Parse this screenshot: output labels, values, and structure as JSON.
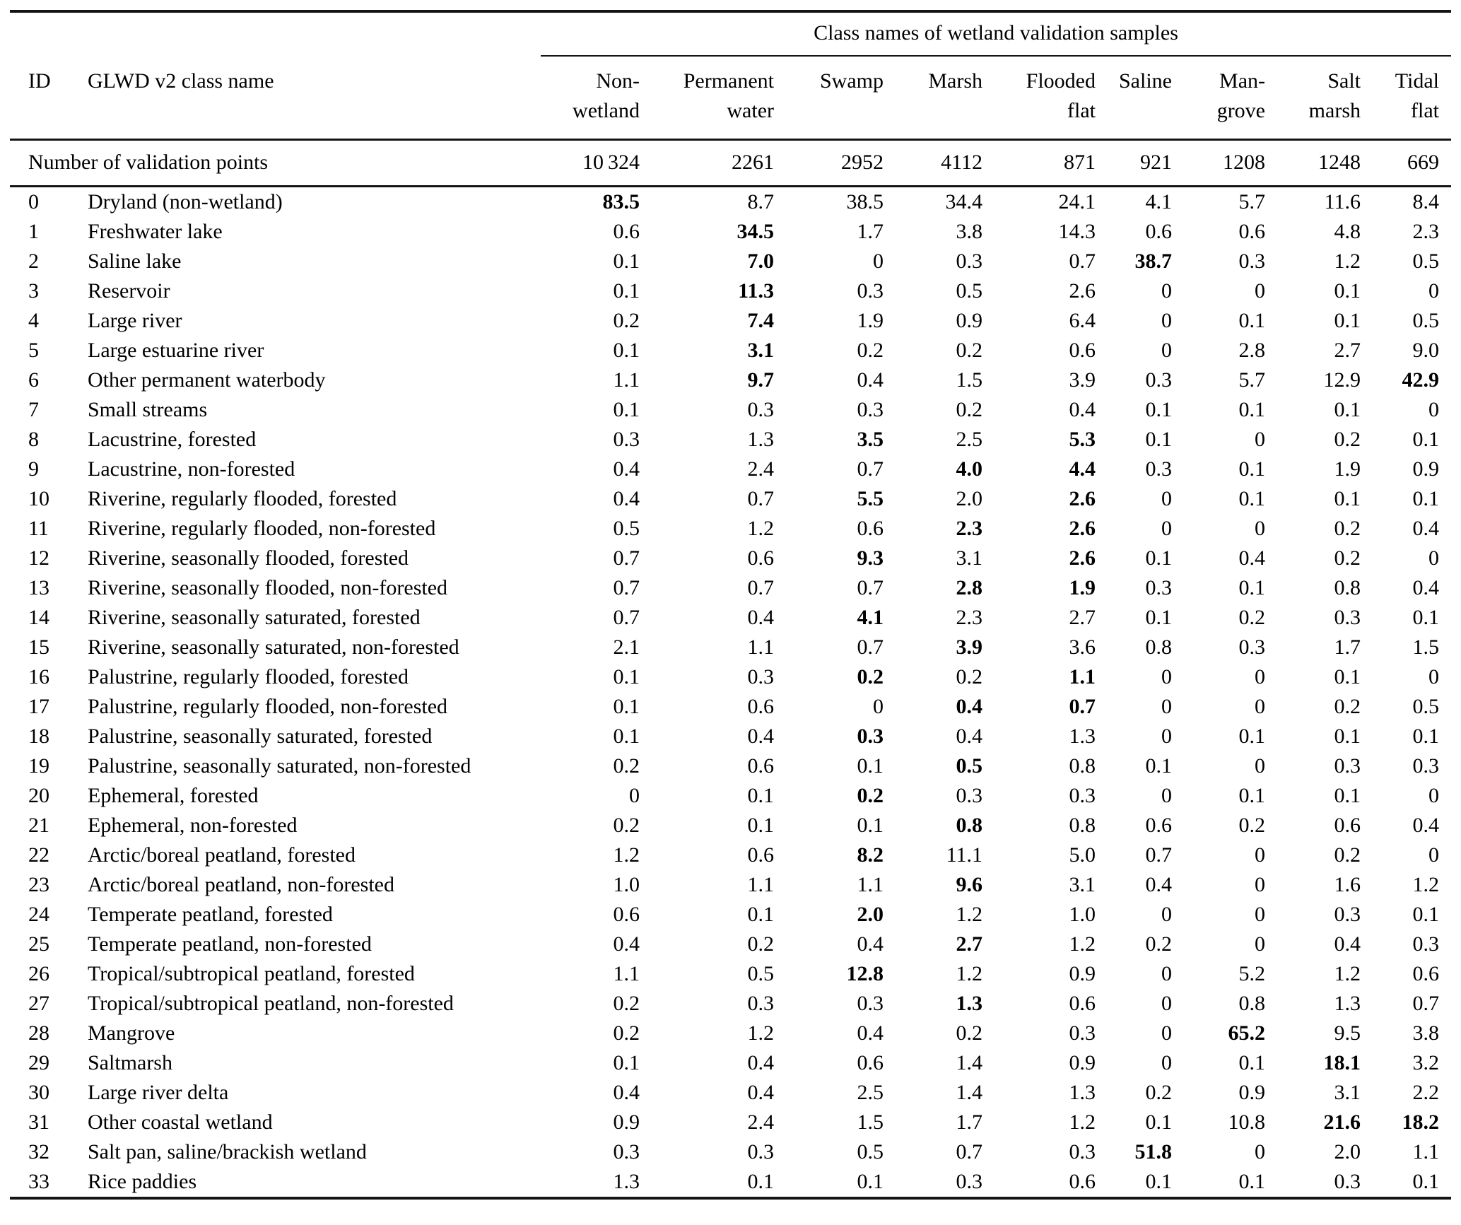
{
  "table": {
    "group_header": "Class names of wetland validation samples",
    "id_header": "ID",
    "name_header": "GLWD v2 class name",
    "columns": [
      {
        "line1": "Non-",
        "line2": "wetland"
      },
      {
        "line1": "Permanent",
        "line2": "water"
      },
      {
        "line1": "Swamp",
        "line2": ""
      },
      {
        "line1": "Marsh",
        "line2": ""
      },
      {
        "line1": "Flooded",
        "line2": "flat"
      },
      {
        "line1": "Saline",
        "line2": ""
      },
      {
        "line1": "Man-",
        "line2": "grove"
      },
      {
        "line1": "Salt",
        "line2": "marsh"
      },
      {
        "line1": "Tidal",
        "line2": "flat"
      }
    ],
    "validation_row": {
      "label": "Number of validation points",
      "values": [
        "10 324",
        "2261",
        "2952",
        "4112",
        "871",
        "921",
        "1208",
        "1248",
        "669"
      ]
    },
    "rows": [
      {
        "id": "0",
        "name": "Dryland (non-wetland)",
        "values": [
          "83.5",
          "8.7",
          "38.5",
          "34.4",
          "24.1",
          "4.1",
          "5.7",
          "11.6",
          "8.4"
        ],
        "bold": [
          0
        ]
      },
      {
        "id": "1",
        "name": "Freshwater lake",
        "values": [
          "0.6",
          "34.5",
          "1.7",
          "3.8",
          "14.3",
          "0.6",
          "0.6",
          "4.8",
          "2.3"
        ],
        "bold": [
          1
        ]
      },
      {
        "id": "2",
        "name": "Saline lake",
        "values": [
          "0.1",
          "7.0",
          "0",
          "0.3",
          "0.7",
          "38.7",
          "0.3",
          "1.2",
          "0.5"
        ],
        "bold": [
          1,
          5
        ]
      },
      {
        "id": "3",
        "name": "Reservoir",
        "values": [
          "0.1",
          "11.3",
          "0.3",
          "0.5",
          "2.6",
          "0",
          "0",
          "0.1",
          "0"
        ],
        "bold": [
          1
        ]
      },
      {
        "id": "4",
        "name": "Large river",
        "values": [
          "0.2",
          "7.4",
          "1.9",
          "0.9",
          "6.4",
          "0",
          "0.1",
          "0.1",
          "0.5"
        ],
        "bold": [
          1
        ]
      },
      {
        "id": "5",
        "name": "Large estuarine river",
        "values": [
          "0.1",
          "3.1",
          "0.2",
          "0.2",
          "0.6",
          "0",
          "2.8",
          "2.7",
          "9.0"
        ],
        "bold": [
          1
        ]
      },
      {
        "id": "6",
        "name": "Other permanent waterbody",
        "values": [
          "1.1",
          "9.7",
          "0.4",
          "1.5",
          "3.9",
          "0.3",
          "5.7",
          "12.9",
          "42.9"
        ],
        "bold": [
          1,
          8
        ]
      },
      {
        "id": "7",
        "name": "Small streams",
        "values": [
          "0.1",
          "0.3",
          "0.3",
          "0.2",
          "0.4",
          "0.1",
          "0.1",
          "0.1",
          "0"
        ],
        "bold": []
      },
      {
        "id": "8",
        "name": "Lacustrine, forested",
        "values": [
          "0.3",
          "1.3",
          "3.5",
          "2.5",
          "5.3",
          "0.1",
          "0",
          "0.2",
          "0.1"
        ],
        "bold": [
          2,
          4
        ]
      },
      {
        "id": "9",
        "name": "Lacustrine, non-forested",
        "values": [
          "0.4",
          "2.4",
          "0.7",
          "4.0",
          "4.4",
          "0.3",
          "0.1",
          "1.9",
          "0.9"
        ],
        "bold": [
          3,
          4
        ]
      },
      {
        "id": "10",
        "name": "Riverine, regularly flooded, forested",
        "values": [
          "0.4",
          "0.7",
          "5.5",
          "2.0",
          "2.6",
          "0",
          "0.1",
          "0.1",
          "0.1"
        ],
        "bold": [
          2,
          4
        ]
      },
      {
        "id": "11",
        "name": "Riverine, regularly flooded, non-forested",
        "values": [
          "0.5",
          "1.2",
          "0.6",
          "2.3",
          "2.6",
          "0",
          "0",
          "0.2",
          "0.4"
        ],
        "bold": [
          3,
          4
        ]
      },
      {
        "id": "12",
        "name": "Riverine, seasonally flooded, forested",
        "values": [
          "0.7",
          "0.6",
          "9.3",
          "3.1",
          "2.6",
          "0.1",
          "0.4",
          "0.2",
          "0"
        ],
        "bold": [
          2,
          4
        ]
      },
      {
        "id": "13",
        "name": "Riverine, seasonally flooded, non-forested",
        "values": [
          "0.7",
          "0.7",
          "0.7",
          "2.8",
          "1.9",
          "0.3",
          "0.1",
          "0.8",
          "0.4"
        ],
        "bold": [
          3,
          4
        ]
      },
      {
        "id": "14",
        "name": "Riverine, seasonally saturated, forested",
        "values": [
          "0.7",
          "0.4",
          "4.1",
          "2.3",
          "2.7",
          "0.1",
          "0.2",
          "0.3",
          "0.1"
        ],
        "bold": [
          2
        ]
      },
      {
        "id": "15",
        "name": "Riverine, seasonally saturated, non-forested",
        "values": [
          "2.1",
          "1.1",
          "0.7",
          "3.9",
          "3.6",
          "0.8",
          "0.3",
          "1.7",
          "1.5"
        ],
        "bold": [
          3
        ]
      },
      {
        "id": "16",
        "name": "Palustrine, regularly flooded, forested",
        "values": [
          "0.1",
          "0.3",
          "0.2",
          "0.2",
          "1.1",
          "0",
          "0",
          "0.1",
          "0"
        ],
        "bold": [
          2,
          4
        ]
      },
      {
        "id": "17",
        "name": "Palustrine, regularly flooded, non-forested",
        "values": [
          "0.1",
          "0.6",
          "0",
          "0.4",
          "0.7",
          "0",
          "0",
          "0.2",
          "0.5"
        ],
        "bold": [
          3,
          4
        ]
      },
      {
        "id": "18",
        "name": "Palustrine, seasonally saturated, forested",
        "values": [
          "0.1",
          "0.4",
          "0.3",
          "0.4",
          "1.3",
          "0",
          "0.1",
          "0.1",
          "0.1"
        ],
        "bold": [
          2
        ]
      },
      {
        "id": "19",
        "name": "Palustrine, seasonally saturated, non-forested",
        "values": [
          "0.2",
          "0.6",
          "0.1",
          "0.5",
          "0.8",
          "0.1",
          "0",
          "0.3",
          "0.3"
        ],
        "bold": [
          3
        ]
      },
      {
        "id": "20",
        "name": "Ephemeral, forested",
        "values": [
          "0",
          "0.1",
          "0.2",
          "0.3",
          "0.3",
          "0",
          "0.1",
          "0.1",
          "0"
        ],
        "bold": [
          2
        ]
      },
      {
        "id": "21",
        "name": "Ephemeral, non-forested",
        "values": [
          "0.2",
          "0.1",
          "0.1",
          "0.8",
          "0.8",
          "0.6",
          "0.2",
          "0.6",
          "0.4"
        ],
        "bold": [
          3
        ]
      },
      {
        "id": "22",
        "name": "Arctic/boreal peatland, forested",
        "values": [
          "1.2",
          "0.6",
          "8.2",
          "11.1",
          "5.0",
          "0.7",
          "0",
          "0.2",
          "0"
        ],
        "bold": [
          2
        ]
      },
      {
        "id": "23",
        "name": "Arctic/boreal peatland, non-forested",
        "values": [
          "1.0",
          "1.1",
          "1.1",
          "9.6",
          "3.1",
          "0.4",
          "0",
          "1.6",
          "1.2"
        ],
        "bold": [
          3
        ]
      },
      {
        "id": "24",
        "name": "Temperate peatland, forested",
        "values": [
          "0.6",
          "0.1",
          "2.0",
          "1.2",
          "1.0",
          "0",
          "0",
          "0.3",
          "0.1"
        ],
        "bold": [
          2
        ]
      },
      {
        "id": "25",
        "name": "Temperate peatland, non-forested",
        "values": [
          "0.4",
          "0.2",
          "0.4",
          "2.7",
          "1.2",
          "0.2",
          "0",
          "0.4",
          "0.3"
        ],
        "bold": [
          3
        ]
      },
      {
        "id": "26",
        "name": "Tropical/subtropical peatland, forested",
        "values": [
          "1.1",
          "0.5",
          "12.8",
          "1.2",
          "0.9",
          "0",
          "5.2",
          "1.2",
          "0.6"
        ],
        "bold": [
          2
        ]
      },
      {
        "id": "27",
        "name": "Tropical/subtropical peatland, non-forested",
        "values": [
          "0.2",
          "0.3",
          "0.3",
          "1.3",
          "0.6",
          "0",
          "0.8",
          "1.3",
          "0.7"
        ],
        "bold": [
          3
        ]
      },
      {
        "id": "28",
        "name": "Mangrove",
        "values": [
          "0.2",
          "1.2",
          "0.4",
          "0.2",
          "0.3",
          "0",
          "65.2",
          "9.5",
          "3.8"
        ],
        "bold": [
          6
        ]
      },
      {
        "id": "29",
        "name": "Saltmarsh",
        "values": [
          "0.1",
          "0.4",
          "0.6",
          "1.4",
          "0.9",
          "0",
          "0.1",
          "18.1",
          "3.2"
        ],
        "bold": [
          7
        ]
      },
      {
        "id": "30",
        "name": "Large river delta",
        "values": [
          "0.4",
          "0.4",
          "2.5",
          "1.4",
          "1.3",
          "0.2",
          "0.9",
          "3.1",
          "2.2"
        ],
        "bold": []
      },
      {
        "id": "31",
        "name": "Other coastal wetland",
        "values": [
          "0.9",
          "2.4",
          "1.5",
          "1.7",
          "1.2",
          "0.1",
          "10.8",
          "21.6",
          "18.2"
        ],
        "bold": [
          7,
          8
        ]
      },
      {
        "id": "32",
        "name": "Salt pan, saline/brackish wetland",
        "values": [
          "0.3",
          "0.3",
          "0.5",
          "0.7",
          "0.3",
          "51.8",
          "0",
          "2.0",
          "1.1"
        ],
        "bold": [
          5
        ]
      },
      {
        "id": "33",
        "name": "Rice paddies",
        "values": [
          "1.3",
          "0.1",
          "0.1",
          "0.3",
          "0.6",
          "0.1",
          "0.1",
          "0.3",
          "0.1"
        ],
        "bold": []
      }
    ]
  }
}
